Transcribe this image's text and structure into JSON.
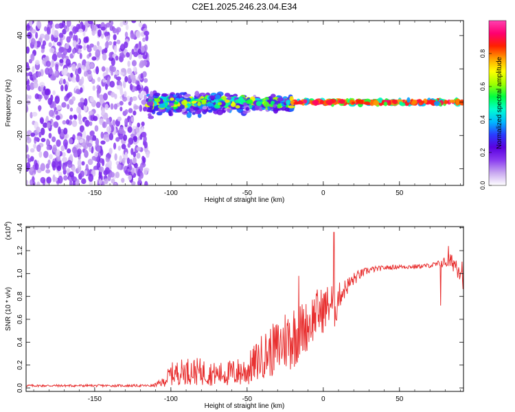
{
  "title": "C2E1.2025.246.23.04.E34",
  "chart_data": [
    {
      "type": "heatmap",
      "xlabel": "Height of straight line (km)",
      "ylabel": "Frequency (Hz)",
      "xlim": [
        -195,
        92
      ],
      "ylim": [
        -50,
        49
      ],
      "xticks": [
        "-150",
        "-100",
        "-50",
        "0",
        "50"
      ],
      "yticks": [
        "-40",
        "-20",
        "0",
        "20",
        "40"
      ],
      "grid": false,
      "colorbar": {
        "label": "Normalized spectral amplitude",
        "range": [
          0,
          1
        ],
        "ticks": [
          "0.0",
          "0.2",
          "0.4",
          "0.6",
          "0.8"
        ],
        "colormap": [
          "#ffffff",
          "#c8a8f0",
          "#8a3cf0",
          "#5a00e0",
          "#2a3cff",
          "#00b8ff",
          "#00ffd0",
          "#00ff40",
          "#a0ff00",
          "#ffff00",
          "#ffa000",
          "#ff2000",
          "#ff0070",
          "#ff40b0"
        ]
      },
      "regions": [
        {
          "x": [
            -195,
            -115
          ],
          "freq_spread_hz": [
            -50,
            49
          ],
          "amplitude": 0.15
        },
        {
          "x": [
            -115,
            -20
          ],
          "freq_spread_hz": [
            -12,
            8
          ],
          "amplitude": 0.35
        },
        {
          "x": [
            -20,
            92
          ],
          "freq_spread_hz": [
            -2,
            2
          ],
          "amplitude": 0.9
        }
      ]
    },
    {
      "type": "line",
      "xlabel": "Height of straight line (km)",
      "ylabel": "SNR (10 * v/v)",
      "exponent_label": "(x10",
      "exponent_power": "4",
      "exponent_close": ")",
      "xlim": [
        -195,
        92
      ],
      "ylim": [
        -0.03,
        1.41
      ],
      "xticks": [
        "-150",
        "-100",
        "-50",
        "0",
        "50"
      ],
      "yticks": [
        "0.0",
        "0.2",
        "0.4",
        "0.6",
        "0.8",
        "1.0",
        "1.2",
        "1.4"
      ],
      "grid": false,
      "color": "#e83030",
      "series": [
        {
          "x": [
            -195,
            -160,
            -130,
            -112,
            -105,
            -100,
            -90,
            -80,
            -70,
            -60,
            -50,
            -40,
            -30,
            -25,
            -20,
            -15,
            -10,
            -5,
            0,
            5,
            8,
            10,
            15,
            20,
            25,
            30,
            40,
            50,
            60,
            70,
            75,
            80,
            85,
            90,
            92
          ],
          "y": [
            0.02,
            0.02,
            0.02,
            0.02,
            0.05,
            0.12,
            0.15,
            0.14,
            0.12,
            0.13,
            0.15,
            0.28,
            0.35,
            0.42,
            0.45,
            0.5,
            0.55,
            0.65,
            0.68,
            0.75,
            0.7,
            0.8,
            0.88,
            0.95,
            1.0,
            1.03,
            1.05,
            1.06,
            1.06,
            1.07,
            1.08,
            1.1,
            1.1,
            1.05,
            1.0
          ],
          "noise": [
            0.01,
            0.01,
            0.01,
            0.01,
            0.04,
            0.1,
            0.12,
            0.12,
            0.1,
            0.12,
            0.14,
            0.2,
            0.25,
            0.28,
            0.3,
            0.25,
            0.22,
            0.22,
            0.2,
            0.18,
            0.2,
            0.12,
            0.08,
            0.06,
            0.04,
            0.03,
            0.02,
            0.02,
            0.02,
            0.02,
            0.03,
            0.05,
            0.08,
            0.12,
            0.15
          ]
        }
      ],
      "spikes": [
        {
          "x": -16,
          "y": 0.98
        },
        {
          "x": 7,
          "y": 1.36
        },
        {
          "x": 77,
          "y": 0.72
        },
        {
          "x": 82,
          "y": 1.24
        }
      ]
    }
  ]
}
